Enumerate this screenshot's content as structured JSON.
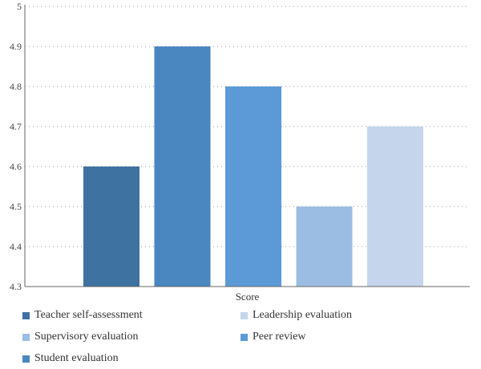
{
  "chart_data": {
    "type": "bar",
    "xlabel": "Score",
    "ylabel": "",
    "ylim": [
      4.3,
      5.0
    ],
    "yticks": [
      "5",
      "4.9",
      "4.8",
      "4.7",
      "4.6",
      "4.5",
      "4.4",
      "4.3"
    ],
    "grid": true,
    "legend_position": "bottom",
    "series": [
      {
        "name": "Teacher self-assessment",
        "value": 4.6,
        "color": "#3e72a0"
      },
      {
        "name": "Student evaluation",
        "value": 4.9,
        "color": "#4a86c0"
      },
      {
        "name": "Peer review",
        "value": 4.8,
        "color": "#5b9ad6"
      },
      {
        "name": "Supervisory evaluation",
        "value": 4.5,
        "color": "#9cbde3"
      },
      {
        "name": "Leadership evaluation",
        "value": 4.7,
        "color": "#c4d5ec"
      }
    ]
  },
  "legend": [
    {
      "label": "Teacher self-assessment",
      "color": "#3e72a0"
    },
    {
      "label": "Leadership evaluation",
      "color": "#c4d5ec"
    },
    {
      "label": "Supervisory evaluation",
      "color": "#9cbde3"
    },
    {
      "label": "Peer review",
      "color": "#5b9ad6"
    },
    {
      "label": "Student evaluation",
      "color": "#4a86c0"
    }
  ]
}
